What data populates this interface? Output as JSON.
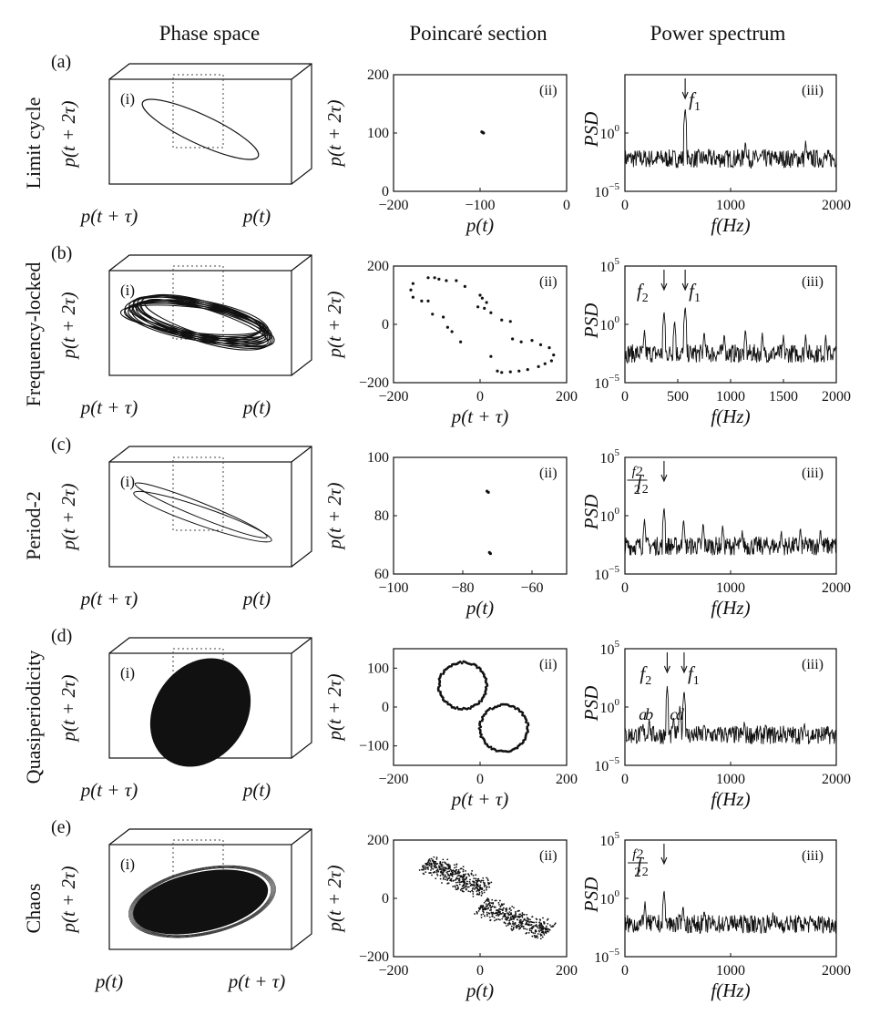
{
  "header": {
    "columns": [
      "Phase space",
      "Poincaré section",
      "Power spectrum"
    ]
  },
  "rows": [
    {
      "letter": "(a)",
      "label": "Limit cycle",
      "phase": {
        "panel": "(i)",
        "z_label": "p(t + 2τ)",
        "left_label": "p(t + τ)",
        "right_label": "p(t)",
        "kind": "ellipse"
      },
      "poincare": {
        "panel": "(ii)",
        "ylabel": "p(t + 2τ)",
        "xlabel": "p(t)"
      },
      "spectrum": {
        "panel": "(iii)",
        "ylabel": "PSD",
        "xlabel": "f(Hz)",
        "annotations": [
          {
            "text": "f",
            "sub": "1",
            "x": 570
          }
        ]
      }
    },
    {
      "letter": "(b)",
      "label": "Frequency-locked",
      "phase": {
        "panel": "(i)",
        "z_label": "p(t + 2τ)",
        "left_label": "p(t + τ)",
        "right_label": "p(t)",
        "kind": "torus"
      },
      "poincare": {
        "panel": "(ii)",
        "ylabel": "p(t + 2τ)",
        "xlabel": "p(t + τ)"
      },
      "spectrum": {
        "panel": "(iii)",
        "ylabel": "PSD",
        "xlabel": "f(Hz)",
        "annotations": [
          {
            "text": "f",
            "sub": "2",
            "x": 370
          },
          {
            "text": "f",
            "sub": "1",
            "x": 570
          }
        ]
      }
    },
    {
      "letter": "(c)",
      "label": "Period-2",
      "phase": {
        "panel": "(i)",
        "z_label": "p(t + 2τ)",
        "left_label": "p(t + τ)",
        "right_label": "p(t)",
        "kind": "period2"
      },
      "poincare": {
        "panel": "(ii)",
        "ylabel": "p(t + 2τ)",
        "xlabel": "p(t)"
      },
      "spectrum": {
        "panel": "(iii)",
        "ylabel": "PSD",
        "xlabel": "f(Hz)",
        "annotations": [
          {
            "text": "f",
            "sub": "2",
            "x": 370
          }
        ],
        "fraction": {
          "num": "f2",
          "den": "2",
          "x": 185
        }
      }
    },
    {
      "letter": "(d)",
      "label": "Quasiperiodicity",
      "phase": {
        "panel": "(i)",
        "z_label": "p(t + 2τ)",
        "left_label": "p(t + τ)",
        "right_label": "p(t)",
        "kind": "disk"
      },
      "poincare": {
        "panel": "(ii)",
        "ylabel": "p(t + 2τ)",
        "xlabel": "p(t + τ)"
      },
      "spectrum": {
        "panel": "(iii)",
        "ylabel": "PSD",
        "xlabel": "f(Hz)",
        "annotations": [
          {
            "text": "f",
            "sub": "2",
            "x": 400
          },
          {
            "text": "f",
            "sub": "1",
            "x": 560
          }
        ],
        "letters": [
          {
            "t": "a",
            "x": 170
          },
          {
            "t": "b",
            "x": 230
          },
          {
            "t": "c",
            "x": 460
          },
          {
            "t": "d",
            "x": 520
          }
        ]
      }
    },
    {
      "letter": "(e)",
      "label": "Chaos",
      "phase": {
        "panel": "(i)",
        "z_label": "p(t + 2τ)",
        "left_label": "p(t)",
        "right_label": "p(t + τ)",
        "kind": "chaos"
      },
      "poincare": {
        "panel": "(ii)",
        "ylabel": "p(t + 2τ)",
        "xlabel": "p(t)"
      },
      "spectrum": {
        "panel": "(iii)",
        "ylabel": "PSD",
        "xlabel": "f(Hz)",
        "annotations": [
          {
            "text": "f",
            "sub": "2",
            "x": 370
          }
        ],
        "fraction": {
          "num": "f2",
          "den": "2",
          "x": 190
        }
      }
    }
  ],
  "chart_data": [
    {
      "type": "scatter",
      "panel": "a-ii",
      "xlim": [
        -200,
        0
      ],
      "ylim": [
        0,
        200
      ],
      "xticks": [
        -200,
        -100,
        0
      ],
      "yticks": [
        0,
        100,
        200
      ],
      "points": [
        [
          -98,
          102
        ],
        [
          -96,
          100
        ],
        [
          -97,
          101
        ]
      ]
    },
    {
      "type": "scatter",
      "panel": "b-ii",
      "xlim": [
        -200,
        200
      ],
      "ylim": [
        -200,
        200
      ],
      "xticks": [
        -200,
        0,
        200
      ],
      "yticks": [
        -200,
        0,
        200
      ],
      "points": [
        [
          -120,
          160
        ],
        [
          -105,
          160
        ],
        [
          -95,
          155
        ],
        [
          -78,
          150
        ],
        [
          -55,
          150
        ],
        [
          -35,
          130
        ],
        [
          -155,
          140
        ],
        [
          -160,
          118
        ],
        [
          -155,
          93
        ],
        [
          -135,
          80
        ],
        [
          -120,
          80
        ],
        [
          -110,
          35
        ],
        [
          -85,
          25
        ],
        [
          -75,
          -10
        ],
        [
          -65,
          -25
        ],
        [
          -45,
          -60
        ],
        [
          0,
          100
        ],
        [
          15,
          75
        ],
        [
          -5,
          60
        ],
        [
          10,
          55
        ],
        [
          5,
          90
        ],
        [
          25,
          40
        ],
        [
          50,
          15
        ],
        [
          70,
          10
        ],
        [
          75,
          -50
        ],
        [
          95,
          -60
        ],
        [
          120,
          -55
        ],
        [
          140,
          -70
        ],
        [
          160,
          -80
        ],
        [
          170,
          -105
        ],
        [
          165,
          -125
        ],
        [
          150,
          -135
        ],
        [
          135,
          -145
        ],
        [
          110,
          -155
        ],
        [
          90,
          -160
        ],
        [
          70,
          -163
        ],
        [
          50,
          -165
        ],
        [
          40,
          -160
        ],
        [
          25,
          -110
        ]
      ]
    },
    {
      "type": "scatter",
      "panel": "c-ii",
      "xlim": [
        -100,
        -50
      ],
      "ylim": [
        60,
        100
      ],
      "xticks": [
        -100,
        -80,
        -60
      ],
      "yticks": [
        60,
        80,
        100
      ],
      "points": [
        [
          -73,
          88.4
        ],
        [
          -72.6,
          88.0
        ],
        [
          -72.3,
          67.4
        ],
        [
          -72.0,
          67.0
        ]
      ]
    },
    {
      "type": "scatter",
      "panel": "d-ii",
      "xlim": [
        -200,
        200
      ],
      "ylim": [
        -150,
        150
      ],
      "xticks": [
        -200,
        0,
        200
      ],
      "yticks": [
        -100,
        0,
        100
      ],
      "loops": [
        {
          "cx": -40,
          "cy": 55,
          "rx": 55,
          "ry": 60
        },
        {
          "cx": 55,
          "cy": -55,
          "rx": 55,
          "ry": 60
        }
      ]
    },
    {
      "type": "scatter",
      "panel": "e-ii",
      "xlim": [
        -200,
        200
      ],
      "ylim": [
        -200,
        200
      ],
      "xticks": [
        -200,
        0,
        200
      ],
      "yticks": [
        -200,
        0,
        200
      ],
      "clouds": [
        {
          "cx": -55,
          "cy": 75,
          "len": 170,
          "wid": 40,
          "angle": -35
        },
        {
          "cx": 80,
          "cy": -70,
          "len": 180,
          "wid": 40,
          "angle": -30
        }
      ]
    },
    {
      "type": "line",
      "panel": "a-iii",
      "xlim": [
        0,
        2000
      ],
      "ylim": [
        -5,
        5
      ],
      "ylog": true,
      "xticks": [
        0,
        1000,
        2000
      ],
      "yticks": [
        "10^0",
        "10^-5"
      ],
      "baseline": -2.2,
      "peaks": [
        [
          570,
          2.2
        ],
        [
          1140,
          -0.6
        ],
        [
          1710,
          -0.6
        ]
      ]
    },
    {
      "type": "line",
      "panel": "b-iii",
      "xlim": [
        0,
        2000
      ],
      "ylim": [
        -5,
        5
      ],
      "ylog": true,
      "xticks": [
        0,
        500,
        1000,
        1500,
        2000
      ],
      "yticks": [
        "10^5",
        "10^0",
        "10^-5"
      ],
      "baseline": -2.5,
      "peaks": [
        [
          185,
          -0.4
        ],
        [
          370,
          1.2
        ],
        [
          470,
          0.4
        ],
        [
          570,
          1.6
        ],
        [
          750,
          -0.5
        ],
        [
          940,
          -0.7
        ],
        [
          1140,
          -0.3
        ],
        [
          1300,
          -0.7
        ],
        [
          1500,
          -0.9
        ],
        [
          1710,
          -0.8
        ],
        [
          1900,
          -0.9
        ]
      ]
    },
    {
      "type": "line",
      "panel": "c-iii",
      "xlim": [
        0,
        2000
      ],
      "ylim": [
        -5,
        5
      ],
      "ylog": true,
      "xticks": [
        0,
        1000,
        2000
      ],
      "yticks": [
        "10^5",
        "10^0",
        "10^-5"
      ],
      "baseline": -2.6,
      "peaks": [
        [
          185,
          -0.2
        ],
        [
          370,
          0.8
        ],
        [
          555,
          -0.2
        ],
        [
          740,
          -0.5
        ],
        [
          925,
          -0.7
        ],
        [
          1110,
          -1.2
        ],
        [
          1480,
          -1.2
        ],
        [
          1660,
          -0.9
        ],
        [
          1850,
          -1.0
        ]
      ]
    },
    {
      "type": "line",
      "panel": "d-iii",
      "xlim": [
        0,
        2000
      ],
      "ylim": [
        -5,
        5
      ],
      "ylog": true,
      "xticks": [
        0,
        1000,
        2000
      ],
      "yticks": [
        "10^5",
        "10^0",
        "10^-5"
      ],
      "baseline": -2.4,
      "peaks": [
        [
          170,
          -1.3
        ],
        [
          230,
          -0.9
        ],
        [
          400,
          1.8
        ],
        [
          460,
          -0.7
        ],
        [
          520,
          0.2
        ],
        [
          560,
          1.5
        ],
        [
          750,
          -1.3
        ],
        [
          950,
          -1.5
        ],
        [
          1130,
          -1.1
        ],
        [
          1330,
          -1.4
        ],
        [
          1500,
          -1.6
        ],
        [
          1700,
          -1.4
        ]
      ]
    },
    {
      "type": "line",
      "panel": "e-iii",
      "xlim": [
        0,
        2000
      ],
      "ylim": [
        -5,
        5
      ],
      "ylog": true,
      "xticks": [
        0,
        1000,
        2000
      ],
      "yticks": [
        "10^5",
        "10^0",
        "10^-5"
      ],
      "baseline": -2.2,
      "peaks": [
        [
          190,
          -0.2
        ],
        [
          370,
          0.8
        ],
        [
          550,
          -0.5
        ],
        [
          750,
          -0.9
        ],
        [
          1000,
          -1.5
        ],
        [
          1400,
          -1.2
        ],
        [
          1850,
          -1.8
        ]
      ]
    }
  ]
}
